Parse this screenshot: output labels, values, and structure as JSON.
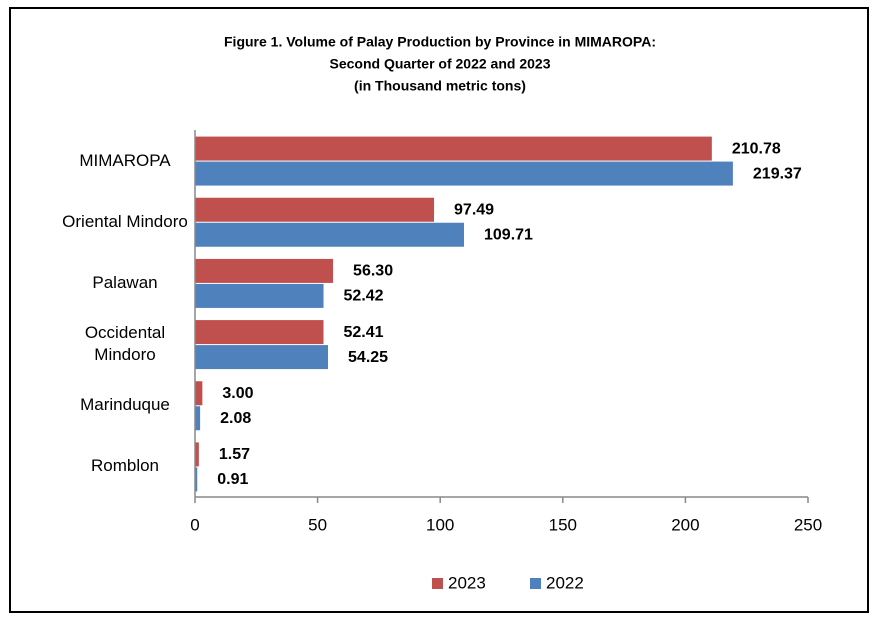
{
  "chart_data": {
    "type": "hbar",
    "title": "Figure 1. Volume of Palay Production by Province in MIMAROPA:",
    "subtitle": [
      "Second Quarter of 2022 and 2023",
      "(in Thousand metric tons)"
    ],
    "categories": [
      "MIMAROPA",
      "Oriental Mindoro",
      "Palawan",
      "Occidental Mindoro",
      "Marinduque",
      "Romblon"
    ],
    "series": [
      {
        "name": "2023",
        "color": "#c0504d",
        "values": [
          210.78,
          97.49,
          56.3,
          52.41,
          3,
          1.57
        ],
        "value_labels": [
          "210.78",
          "97.49",
          "56.30",
          "52.41",
          "3.00",
          "1.57"
        ]
      },
      {
        "name": "2022",
        "color": "#4f81bd",
        "values": [
          219.37,
          109.71,
          52.42,
          54.25,
          2.08,
          0.91
        ],
        "value_labels": [
          "219.37",
          "109.71",
          "52.42",
          "54.25",
          "2.08",
          "0.91"
        ]
      }
    ],
    "xlim": [
      0,
      250
    ],
    "xticks": [
      0,
      50,
      100,
      150,
      200,
      250
    ],
    "grid": false,
    "legend": "bottom"
  }
}
